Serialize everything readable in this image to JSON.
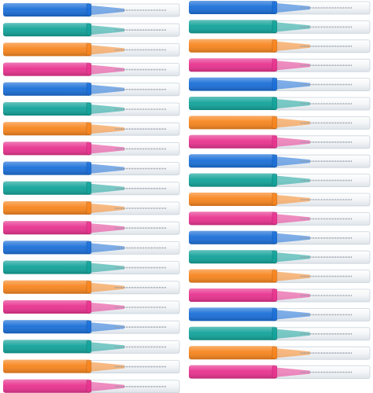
{
  "image": {
    "subject": "interdental-brushes",
    "columns": 2,
    "rows": 20,
    "color_cycle": [
      "blue",
      "teal",
      "orange",
      "pink"
    ],
    "colors": {
      "blue": "#1a6fd8",
      "teal": "#12a39a",
      "orange": "#f7851e",
      "pink": "#e8338f"
    },
    "cap_fill": "#f4f6f8",
    "cap_edge": "#c9d3dc",
    "bristle": "#8f98a3"
  }
}
